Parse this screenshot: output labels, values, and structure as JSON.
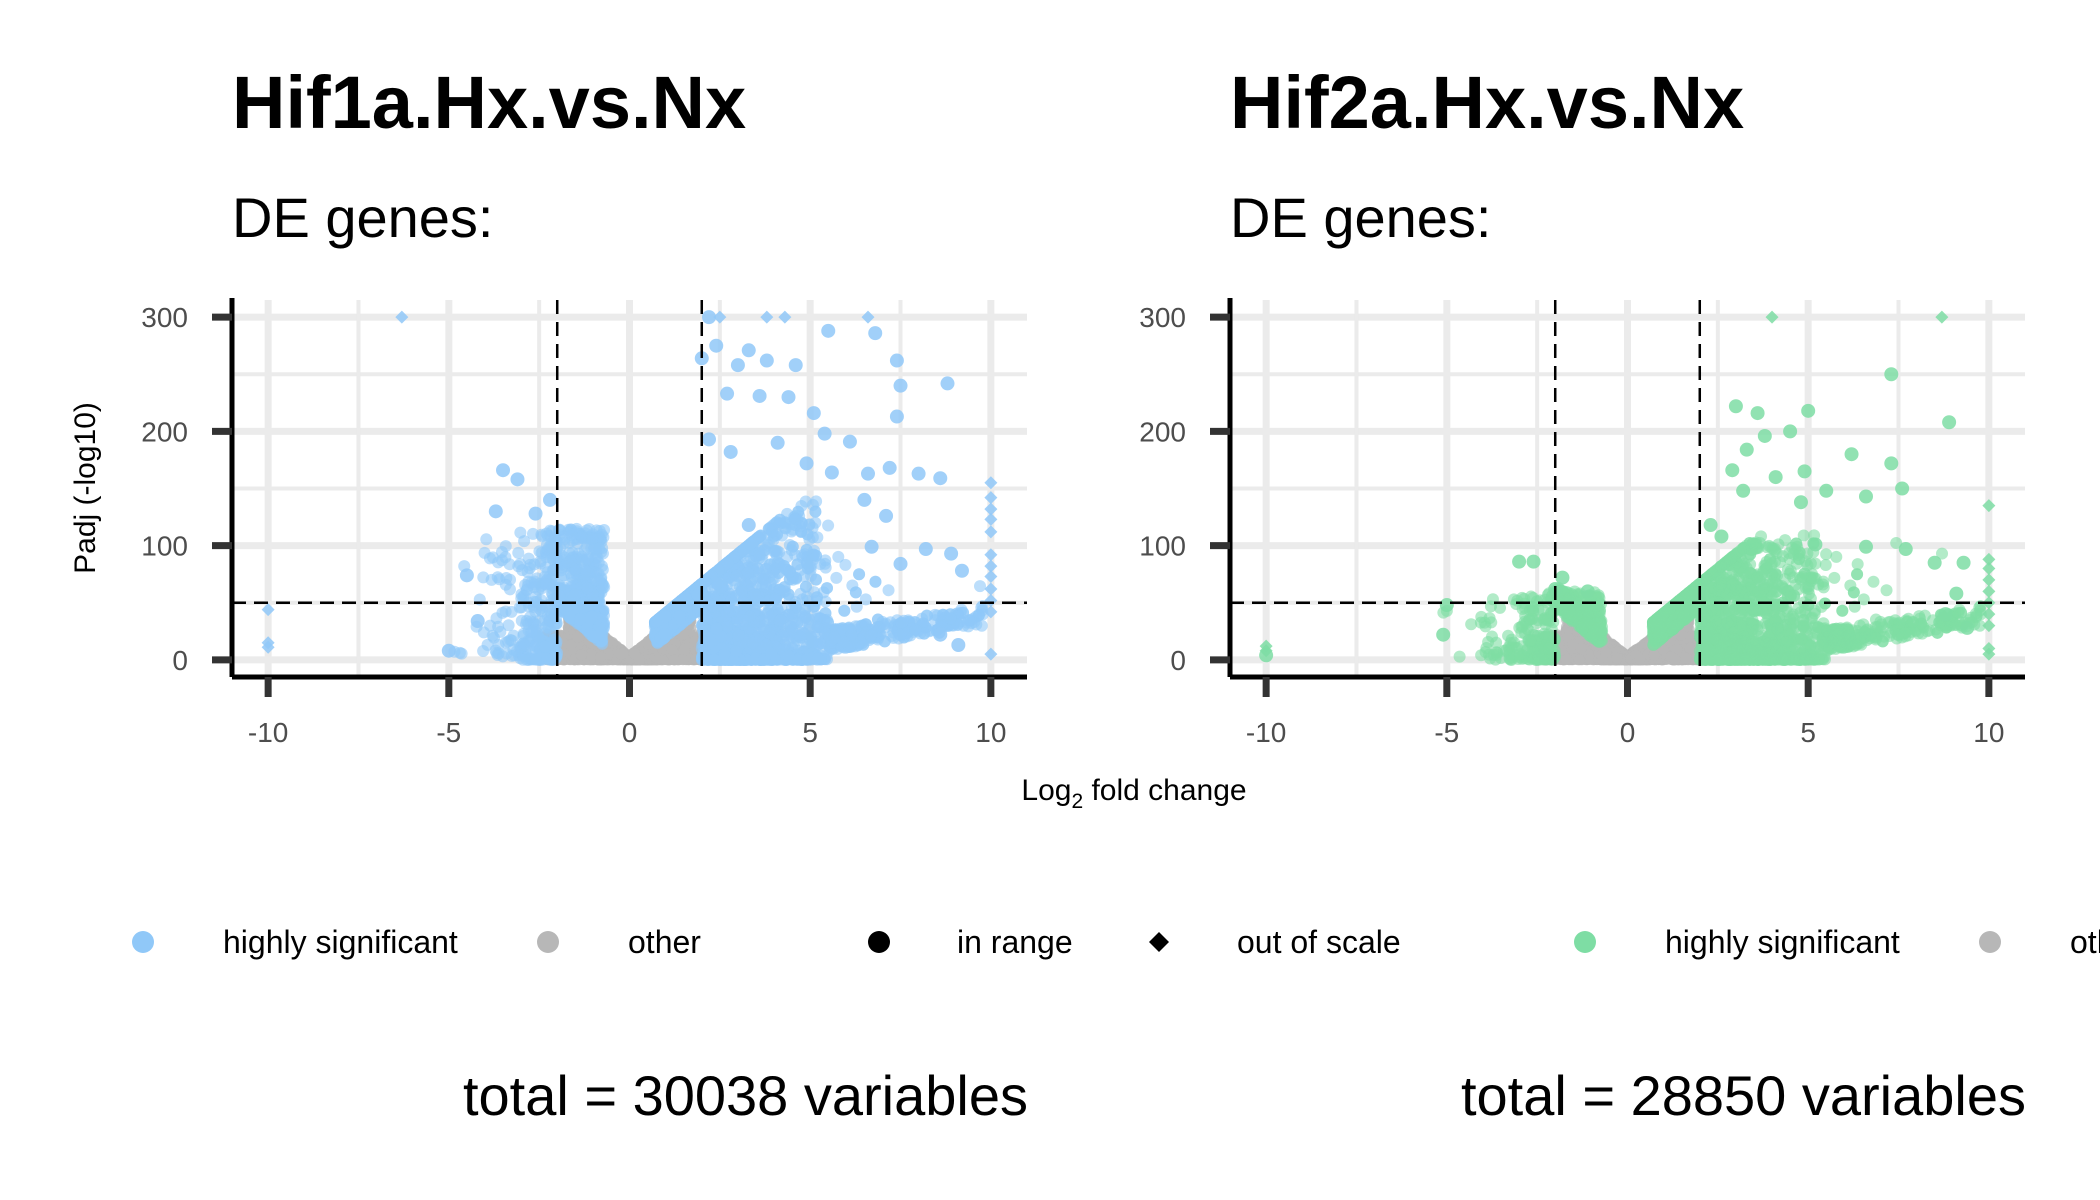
{
  "colors": {
    "panel1_significant": "#90c8f8",
    "panel2_significant": "#7edda4",
    "other": "#b7b7b7",
    "gridline": "#ebebeb",
    "axis": "#000000"
  },
  "x_axis_label": "Log",
  "x_axis_label_sub": "2",
  "x_axis_label_rest": " fold change",
  "y_axis_label": "Padj (-log10)",
  "legend": {
    "items": [
      {
        "label": "highly significant",
        "shape": "circle",
        "color": "#90c8f8"
      },
      {
        "label": "other",
        "shape": "circle",
        "color": "#b7b7b7"
      },
      {
        "label": "in range",
        "shape": "circle",
        "color": "#000000"
      },
      {
        "label": "out of scale",
        "shape": "diamond",
        "color": "#000000"
      },
      {
        "label": "highly significant",
        "shape": "circle",
        "color": "#7edda4"
      },
      {
        "label": "oth",
        "shape": "circle",
        "color": "#b7b7b7"
      }
    ]
  },
  "chart_data": [
    {
      "type": "scatter",
      "title": "Hif1a.Hx.vs.Nx",
      "subtitle": "DE genes:",
      "footer": "total = 30038 variables",
      "xlabel": "Log2 fold change",
      "ylabel": "Padj (-log10)",
      "xlim": [
        -11,
        11
      ],
      "ylim": [
        -15,
        315
      ],
      "xticks": [
        -10,
        -5,
        0,
        5,
        10
      ],
      "yticks": [
        0,
        100,
        200,
        300
      ],
      "fc_cutoff": [
        -2,
        2
      ],
      "padj_cutoff": 50,
      "grid": true,
      "highlight_points": [
        [
          -6.3,
          300,
          "out"
        ],
        [
          2.2,
          300,
          "in"
        ],
        [
          2.5,
          300,
          "out"
        ],
        [
          3.8,
          300,
          "out"
        ],
        [
          4.3,
          300,
          "out"
        ],
        [
          6.6,
          300,
          "out"
        ],
        [
          5.5,
          288,
          "in"
        ],
        [
          6.8,
          286,
          "in"
        ],
        [
          2.0,
          264,
          "in"
        ],
        [
          2.4,
          275,
          "in"
        ],
        [
          3.0,
          258,
          "in"
        ],
        [
          3.3,
          271,
          "in"
        ],
        [
          3.8,
          262,
          "in"
        ],
        [
          4.6,
          258,
          "in"
        ],
        [
          7.4,
          262,
          "in"
        ],
        [
          8.8,
          242,
          "in"
        ],
        [
          7.5,
          240,
          "in"
        ],
        [
          4.4,
          230,
          "in"
        ],
        [
          3.6,
          231,
          "in"
        ],
        [
          2.7,
          233,
          "in"
        ],
        [
          5.1,
          216,
          "in"
        ],
        [
          7.4,
          213,
          "in"
        ],
        [
          5.4,
          198,
          "in"
        ],
        [
          6.1,
          191,
          "in"
        ],
        [
          4.1,
          190,
          "in"
        ],
        [
          2.2,
          193,
          "in"
        ],
        [
          2.8,
          182,
          "in"
        ],
        [
          4.9,
          172,
          "in"
        ],
        [
          5.6,
          164,
          "in"
        ],
        [
          6.6,
          163,
          "in"
        ],
        [
          7.2,
          168,
          "in"
        ],
        [
          8.0,
          163,
          "in"
        ],
        [
          8.6,
          159,
          "in"
        ],
        [
          -3.5,
          166,
          "in"
        ],
        [
          -3.1,
          158,
          "in"
        ],
        [
          -2.2,
          140,
          "in"
        ],
        [
          -2.6,
          128,
          "in"
        ],
        [
          -3.7,
          130,
          "in"
        ],
        [
          10.0,
          155,
          "out"
        ],
        [
          10.0,
          142,
          "out"
        ],
        [
          10.0,
          132,
          "out"
        ],
        [
          10.0,
          123,
          "out"
        ],
        [
          10.0,
          112,
          "out"
        ],
        [
          10.0,
          92,
          "out"
        ],
        [
          10.0,
          82,
          "out"
        ],
        [
          10.0,
          73,
          "out"
        ],
        [
          10.0,
          62,
          "out"
        ],
        [
          10.0,
          52,
          "out"
        ],
        [
          10.0,
          42,
          "out"
        ],
        [
          10.0,
          5,
          "out"
        ],
        [
          -10.0,
          44,
          "out"
        ],
        [
          -10.0,
          15,
          "out"
        ],
        [
          -10.0,
          11,
          "out"
        ],
        [
          -5.0,
          8,
          "in"
        ],
        [
          -4.2,
          34,
          "in"
        ],
        [
          -4.5,
          74,
          "in"
        ],
        [
          8.2,
          97,
          "in"
        ],
        [
          8.9,
          93,
          "in"
        ],
        [
          7.5,
          84,
          "in"
        ],
        [
          6.7,
          99,
          "in"
        ],
        [
          9.2,
          78,
          "in"
        ],
        [
          8.6,
          22,
          "in"
        ],
        [
          9.1,
          13,
          "in"
        ],
        [
          7.1,
          126,
          "in"
        ],
        [
          6.5,
          140,
          "in"
        ],
        [
          3.3,
          118,
          "in"
        ]
      ],
      "cloud_note": "dense band of highly significant genes between |log2FC| 1-6 and Padj 0-130"
    },
    {
      "type": "scatter",
      "title": "Hif2a.Hx.vs.Nx",
      "subtitle": "DE genes:",
      "footer": "total = 28850 variables",
      "xlabel": "Log2 fold change",
      "ylabel": "Padj (-log10)",
      "xlim": [
        -11,
        11
      ],
      "ylim": [
        -15,
        315
      ],
      "xticks": [
        -10,
        -5,
        0,
        5,
        10
      ],
      "yticks": [
        0,
        100,
        200,
        300
      ],
      "fc_cutoff": [
        -2,
        2
      ],
      "padj_cutoff": 50,
      "grid": true,
      "highlight_points": [
        [
          4.0,
          300,
          "out"
        ],
        [
          8.7,
          300,
          "out"
        ],
        [
          7.3,
          250,
          "in"
        ],
        [
          3.0,
          222,
          "in"
        ],
        [
          3.6,
          216,
          "in"
        ],
        [
          5.0,
          218,
          "in"
        ],
        [
          8.9,
          208,
          "in"
        ],
        [
          3.8,
          196,
          "in"
        ],
        [
          4.5,
          200,
          "in"
        ],
        [
          3.3,
          184,
          "in"
        ],
        [
          6.2,
          180,
          "in"
        ],
        [
          7.3,
          172,
          "in"
        ],
        [
          2.9,
          166,
          "in"
        ],
        [
          4.9,
          165,
          "in"
        ],
        [
          7.6,
          150,
          "in"
        ],
        [
          4.1,
          160,
          "in"
        ],
        [
          5.5,
          148,
          "in"
        ],
        [
          6.6,
          143,
          "in"
        ],
        [
          3.2,
          148,
          "in"
        ],
        [
          4.8,
          138,
          "in"
        ],
        [
          10.0,
          135,
          "out"
        ],
        [
          10.0,
          88,
          "out"
        ],
        [
          10.0,
          80,
          "out"
        ],
        [
          10.0,
          70,
          "out"
        ],
        [
          10.0,
          60,
          "out"
        ],
        [
          10.0,
          50,
          "out"
        ],
        [
          10.0,
          40,
          "out"
        ],
        [
          10.0,
          30,
          "out"
        ],
        [
          10.0,
          10,
          "out"
        ],
        [
          10.0,
          5,
          "out"
        ],
        [
          -10.0,
          12,
          "out"
        ],
        [
          -10.0,
          8,
          "out"
        ],
        [
          -10.0,
          4,
          "in"
        ],
        [
          -5.0,
          48,
          "in"
        ],
        [
          -5.1,
          22,
          "in"
        ],
        [
          -3.0,
          86,
          "in"
        ],
        [
          -2.6,
          86,
          "in"
        ],
        [
          -1.8,
          72,
          "in"
        ],
        [
          -1.1,
          60,
          "in"
        ],
        [
          -2.0,
          62,
          "in"
        ],
        [
          8.5,
          85,
          "in"
        ],
        [
          9.3,
          85,
          "in"
        ],
        [
          7.7,
          97,
          "in"
        ],
        [
          6.6,
          99,
          "in"
        ],
        [
          5.2,
          101,
          "in"
        ],
        [
          9.1,
          58,
          "in"
        ],
        [
          8.8,
          40,
          "in"
        ],
        [
          9.4,
          28,
          "in"
        ],
        [
          2.3,
          118,
          "in"
        ],
        [
          2.6,
          108,
          "in"
        ]
      ],
      "cloud_note": "dense band of highly significant genes between |log2FC| 1-6 and Padj 0-100"
    }
  ]
}
